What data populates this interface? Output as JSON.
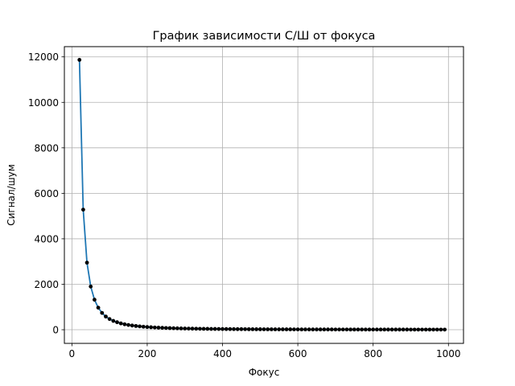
{
  "chart_data": {
    "type": "line",
    "title": "График зависимости С/Ш от фокуса",
    "xlabel": "Фокус",
    "ylabel": "Сигнал/шум",
    "xlim": [
      -20,
      1040
    ],
    "ylim": [
      -600,
      12450
    ],
    "xticks": [
      0,
      200,
      400,
      600,
      800,
      1000
    ],
    "yticks": [
      0,
      2000,
      4000,
      6000,
      8000,
      10000,
      12000
    ],
    "grid": true,
    "colors": {
      "line": "#1f77b4",
      "marker": "#000000",
      "grid": "#b0b0b0"
    },
    "series": [
      {
        "x": [
          20,
          30,
          40,
          50,
          60,
          70,
          80,
          90,
          100,
          110,
          120,
          130,
          140,
          150,
          160,
          170,
          180,
          190,
          200,
          210,
          220,
          230,
          240,
          250,
          260,
          270,
          280,
          290,
          300,
          310,
          320,
          330,
          340,
          350,
          360,
          370,
          380,
          390,
          400,
          410,
          420,
          430,
          440,
          450,
          460,
          470,
          480,
          490,
          500,
          510,
          520,
          530,
          540,
          550,
          560,
          570,
          580,
          590,
          600,
          610,
          620,
          630,
          640,
          650,
          660,
          670,
          680,
          690,
          700,
          710,
          720,
          730,
          740,
          750,
          760,
          770,
          780,
          790,
          800,
          810,
          820,
          830,
          840,
          850,
          860,
          870,
          880,
          890,
          900,
          910,
          920,
          930,
          940,
          950,
          960,
          970,
          980,
          990
        ],
        "y": [
          11870,
          5280,
          2950,
          1900,
          1320,
          970,
          740,
          580,
          470,
          390,
          330,
          280,
          240,
          210,
          185,
          165,
          148,
          133,
          120,
          109,
          99,
          91,
          84,
          77,
          72,
          67,
          62,
          58,
          54,
          51,
          48,
          45,
          42,
          40,
          38,
          36,
          34,
          33,
          31,
          30,
          28,
          27,
          26,
          25,
          24,
          23,
          22,
          21,
          21,
          20,
          19,
          19,
          18,
          17,
          17,
          16,
          16,
          15,
          15,
          14,
          14,
          14,
          13,
          13,
          13,
          12,
          12,
          12,
          11,
          11,
          11,
          11,
          10,
          10,
          10,
          10,
          9,
          9,
          9,
          9,
          9,
          9,
          8,
          8,
          8,
          8,
          8,
          8,
          7,
          7,
          7,
          7,
          7,
          7,
          7,
          6,
          6,
          6
        ]
      }
    ]
  }
}
